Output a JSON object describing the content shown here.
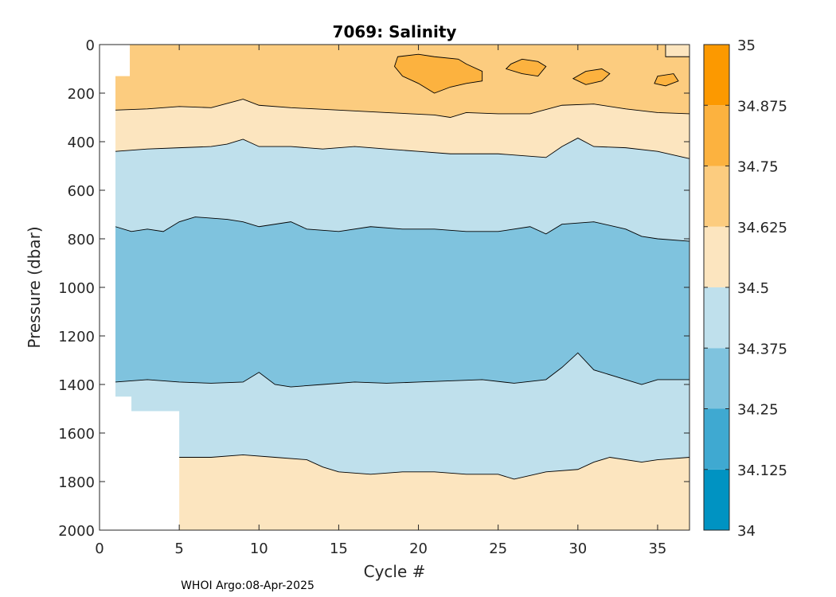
{
  "chart_data": {
    "type": "heatmap",
    "title": "7069:  Salinity",
    "xlabel": "Cycle #",
    "ylabel": "Pressure (dbar)",
    "footer": "WHOI Argo:08-Apr-2025",
    "xlim": [
      0,
      37
    ],
    "ylim": [
      0,
      2000
    ],
    "y_reversed": true,
    "x_ticks": [
      0,
      5,
      10,
      15,
      20,
      25,
      30,
      35
    ],
    "y_ticks": [
      0,
      200,
      400,
      600,
      800,
      1000,
      1200,
      1400,
      1600,
      1800,
      2000
    ],
    "colorbar": {
      "levels": [
        "34",
        "34.125",
        "34.25",
        "34.375",
        "34.5",
        "34.625",
        "34.75",
        "34.875",
        "35"
      ],
      "colors": [
        "#0093c2",
        "#3fa9d1",
        "#7fc3de",
        "#bfe0ec",
        "#fce5bf",
        "#fccc7f",
        "#fcb23f",
        "#fc9900"
      ]
    },
    "salinity_bands": [
      {
        "range": "34.625-34.75",
        "color": "#fccc7f",
        "top": [
          [
            1,
            130
          ],
          [
            1.9,
            130
          ],
          [
            1.9,
            0
          ],
          [
            37,
            0
          ]
        ],
        "bottom": [
          [
            1,
            270
          ],
          [
            3,
            265
          ],
          [
            5,
            255
          ],
          [
            7,
            260
          ],
          [
            9,
            225
          ],
          [
            10,
            250
          ],
          [
            12,
            260
          ],
          [
            15,
            270
          ],
          [
            18,
            280
          ],
          [
            21,
            290
          ],
          [
            22,
            300
          ],
          [
            23,
            280
          ],
          [
            25,
            285
          ],
          [
            27,
            285
          ],
          [
            29,
            250
          ],
          [
            31,
            245
          ],
          [
            33,
            265
          ],
          [
            35,
            280
          ],
          [
            37,
            285
          ]
        ]
      },
      {
        "range": "34.5-34.625",
        "color": "#fce5bf",
        "top": [
          [
            1,
            270
          ],
          [
            3,
            265
          ],
          [
            5,
            255
          ],
          [
            7,
            260
          ],
          [
            9,
            225
          ],
          [
            10,
            250
          ],
          [
            12,
            260
          ],
          [
            15,
            270
          ],
          [
            18,
            280
          ],
          [
            21,
            290
          ],
          [
            22,
            300
          ],
          [
            23,
            280
          ],
          [
            25,
            285
          ],
          [
            27,
            285
          ],
          [
            29,
            250
          ],
          [
            31,
            245
          ],
          [
            33,
            265
          ],
          [
            35,
            280
          ],
          [
            37,
            285
          ]
        ],
        "bottom": [
          [
            1,
            440
          ],
          [
            3,
            430
          ],
          [
            5,
            425
          ],
          [
            7,
            420
          ],
          [
            8,
            410
          ],
          [
            9,
            390
          ],
          [
            10,
            420
          ],
          [
            12,
            420
          ],
          [
            14,
            430
          ],
          [
            16,
            420
          ],
          [
            18,
            430
          ],
          [
            20,
            440
          ],
          [
            22,
            450
          ],
          [
            25,
            450
          ],
          [
            28,
            465
          ],
          [
            29,
            420
          ],
          [
            30,
            385
          ],
          [
            31,
            420
          ],
          [
            33,
            425
          ],
          [
            35,
            440
          ],
          [
            37,
            470
          ]
        ]
      },
      {
        "range": "34.375-34.5",
        "color": "#bfe0ec",
        "top": [
          [
            1,
            440
          ],
          [
            3,
            430
          ],
          [
            5,
            425
          ],
          [
            7,
            420
          ],
          [
            8,
            410
          ],
          [
            9,
            390
          ],
          [
            10,
            420
          ],
          [
            12,
            420
          ],
          [
            14,
            430
          ],
          [
            16,
            420
          ],
          [
            18,
            430
          ],
          [
            20,
            440
          ],
          [
            22,
            450
          ],
          [
            25,
            450
          ],
          [
            28,
            465
          ],
          [
            29,
            420
          ],
          [
            30,
            385
          ],
          [
            31,
            420
          ],
          [
            33,
            425
          ],
          [
            35,
            440
          ],
          [
            37,
            470
          ]
        ],
        "bottom": [
          [
            1,
            750
          ],
          [
            2,
            770
          ],
          [
            3,
            760
          ],
          [
            4,
            770
          ],
          [
            5,
            730
          ],
          [
            6,
            710
          ],
          [
            8,
            720
          ],
          [
            9,
            730
          ],
          [
            10,
            750
          ],
          [
            12,
            730
          ],
          [
            13,
            760
          ],
          [
            15,
            770
          ],
          [
            17,
            750
          ],
          [
            19,
            760
          ],
          [
            21,
            760
          ],
          [
            23,
            770
          ],
          [
            25,
            770
          ],
          [
            27,
            750
          ],
          [
            28,
            780
          ],
          [
            29,
            740
          ],
          [
            31,
            730
          ],
          [
            33,
            760
          ],
          [
            34,
            790
          ],
          [
            35,
            800
          ],
          [
            37,
            810
          ]
        ]
      },
      {
        "range": "34.25-34.375",
        "color": "#7fc3de",
        "top": [
          [
            1,
            750
          ],
          [
            2,
            770
          ],
          [
            3,
            760
          ],
          [
            4,
            770
          ],
          [
            5,
            730
          ],
          [
            6,
            710
          ],
          [
            8,
            720
          ],
          [
            9,
            730
          ],
          [
            10,
            750
          ],
          [
            12,
            730
          ],
          [
            13,
            760
          ],
          [
            15,
            770
          ],
          [
            17,
            750
          ],
          [
            19,
            760
          ],
          [
            21,
            760
          ],
          [
            23,
            770
          ],
          [
            25,
            770
          ],
          [
            27,
            750
          ],
          [
            28,
            780
          ],
          [
            29,
            740
          ],
          [
            31,
            730
          ],
          [
            33,
            760
          ],
          [
            34,
            790
          ],
          [
            35,
            800
          ],
          [
            37,
            810
          ]
        ],
        "bottom": [
          [
            1,
            1390
          ],
          [
            3,
            1380
          ],
          [
            5,
            1390
          ],
          [
            7,
            1395
          ],
          [
            9,
            1390
          ],
          [
            10,
            1350
          ],
          [
            11,
            1400
          ],
          [
            12,
            1410
          ],
          [
            14,
            1400
          ],
          [
            16,
            1390
          ],
          [
            18,
            1395
          ],
          [
            20,
            1390
          ],
          [
            22,
            1385
          ],
          [
            24,
            1380
          ],
          [
            26,
            1395
          ],
          [
            28,
            1380
          ],
          [
            29,
            1330
          ],
          [
            30,
            1270
          ],
          [
            31,
            1340
          ],
          [
            33,
            1380
          ],
          [
            34,
            1400
          ],
          [
            35,
            1380
          ],
          [
            37,
            1380
          ]
        ]
      },
      {
        "range": "34.375-34.5",
        "color": "#bfe0ec",
        "top": [
          [
            1,
            1390
          ],
          [
            3,
            1380
          ],
          [
            5,
            1390
          ],
          [
            7,
            1395
          ],
          [
            9,
            1390
          ],
          [
            10,
            1350
          ],
          [
            11,
            1400
          ],
          [
            12,
            1410
          ],
          [
            14,
            1400
          ],
          [
            16,
            1390
          ],
          [
            18,
            1395
          ],
          [
            20,
            1390
          ],
          [
            22,
            1385
          ],
          [
            24,
            1380
          ],
          [
            26,
            1395
          ],
          [
            28,
            1380
          ],
          [
            29,
            1330
          ],
          [
            30,
            1270
          ],
          [
            31,
            1340
          ],
          [
            33,
            1380
          ],
          [
            34,
            1400
          ],
          [
            35,
            1380
          ],
          [
            37,
            1380
          ]
        ],
        "bottom": [
          [
            1,
            1450
          ],
          [
            2,
            1450
          ],
          [
            2,
            1510
          ],
          [
            5,
            1510
          ],
          [
            5,
            1700
          ],
          [
            7,
            1700
          ],
          [
            9,
            1690
          ],
          [
            11,
            1700
          ],
          [
            13,
            1710
          ],
          [
            14,
            1740
          ],
          [
            15,
            1760
          ],
          [
            17,
            1770
          ],
          [
            19,
            1760
          ],
          [
            21,
            1760
          ],
          [
            23,
            1770
          ],
          [
            25,
            1770
          ],
          [
            26,
            1790
          ],
          [
            28,
            1760
          ],
          [
            30,
            1750
          ],
          [
            31,
            1720
          ],
          [
            32,
            1700
          ],
          [
            34,
            1720
          ],
          [
            35,
            1710
          ],
          [
            37,
            1700
          ]
        ]
      },
      {
        "range": "34.5-34.625",
        "color": "#fce5bf",
        "top": [
          [
            5,
            1700
          ],
          [
            7,
            1700
          ],
          [
            9,
            1690
          ],
          [
            11,
            1700
          ],
          [
            13,
            1710
          ],
          [
            14,
            1740
          ],
          [
            15,
            1760
          ],
          [
            17,
            1770
          ],
          [
            19,
            1760
          ],
          [
            21,
            1760
          ],
          [
            23,
            1770
          ],
          [
            25,
            1770
          ],
          [
            26,
            1790
          ],
          [
            28,
            1760
          ],
          [
            30,
            1750
          ],
          [
            31,
            1720
          ],
          [
            32,
            1700
          ],
          [
            34,
            1720
          ],
          [
            35,
            1710
          ],
          [
            37,
            1700
          ]
        ],
        "bottom": [
          [
            5,
            2000
          ],
          [
            37,
            2000
          ]
        ]
      }
    ],
    "high_salinity_patches": [
      {
        "range": "34.75-34.875",
        "color": "#fcb23f",
        "outline": [
          [
            18.7,
            50
          ],
          [
            20,
            40
          ],
          [
            21,
            50
          ],
          [
            22.5,
            60
          ],
          [
            23,
            80
          ],
          [
            24,
            110
          ],
          [
            24,
            150
          ],
          [
            23,
            160
          ],
          [
            22,
            175
          ],
          [
            21,
            200
          ],
          [
            20,
            160
          ],
          [
            19,
            130
          ],
          [
            18.5,
            90
          ]
        ]
      },
      {
        "range": "34.75-34.875",
        "color": "#fcb23f",
        "outline": [
          [
            26.5,
            60
          ],
          [
            27.5,
            70
          ],
          [
            28,
            90
          ],
          [
            27.5,
            130
          ],
          [
            26.5,
            120
          ],
          [
            25.5,
            100
          ],
          [
            25.8,
            80
          ]
        ]
      },
      {
        "range": "34.75-34.875",
        "color": "#fcb23f",
        "outline": [
          [
            30.5,
            110
          ],
          [
            31.5,
            100
          ],
          [
            32,
            120
          ],
          [
            31.5,
            150
          ],
          [
            30.5,
            165
          ],
          [
            29.7,
            140
          ]
        ]
      },
      {
        "range": "34.75-34.875",
        "color": "#fcb23f",
        "outline": [
          [
            35,
            130
          ],
          [
            36,
            120
          ],
          [
            36.3,
            150
          ],
          [
            35.5,
            170
          ],
          [
            34.8,
            160
          ]
        ]
      },
      {
        "range": "34.5-34.625",
        "color": "#fce5bf",
        "outline": [
          [
            35.5,
            0
          ],
          [
            37,
            0
          ],
          [
            37,
            50
          ],
          [
            35.5,
            50
          ]
        ]
      }
    ]
  }
}
